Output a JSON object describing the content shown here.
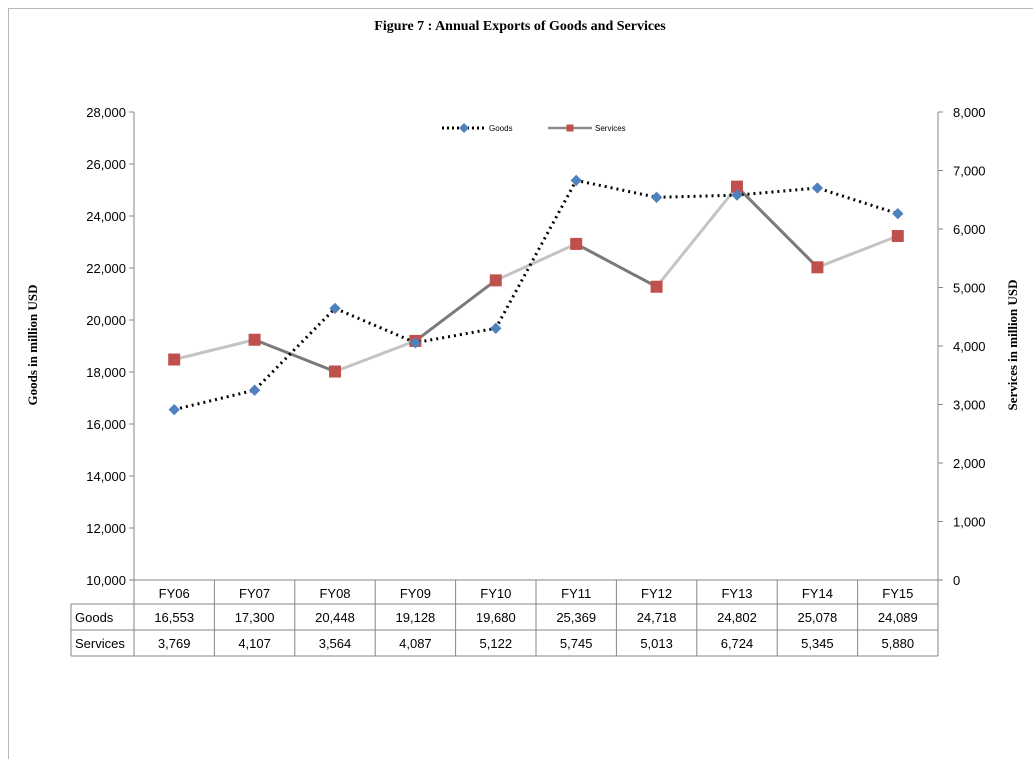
{
  "chart_data": {
    "type": "line",
    "title": "Figure  7 : Annual Exports of Goods and Services",
    "categories": [
      "FY06",
      "FY07",
      "FY08",
      "FY09",
      "FY10",
      "FY11",
      "FY12",
      "FY13",
      "FY14",
      "FY15"
    ],
    "series": [
      {
        "name": "Goods",
        "axis": "left",
        "values": [
          16553,
          17300,
          20448,
          19128,
          19680,
          25369,
          24718,
          24802,
          25078,
          24089
        ],
        "color": "#4f81bd",
        "line_color": "#000000",
        "line_style": "dotted",
        "marker": "diamond"
      },
      {
        "name": "Services",
        "axis": "right",
        "values": [
          3769,
          4107,
          3564,
          4087,
          5122,
          5745,
          5013,
          6724,
          5345,
          5880
        ],
        "color": "#c0504d",
        "line_color": "#8c8c8c",
        "line_style": "solid",
        "marker": "square"
      }
    ],
    "ylabel_left": "Goods in million USD",
    "ylabel_right": "Services in million USD",
    "ylim_left": [
      10000,
      28000
    ],
    "ylim_right": [
      0,
      8000
    ],
    "yticks_left": [
      "10,000",
      "12,000",
      "14,000",
      "16,000",
      "18,000",
      "20,000",
      "22,000",
      "24,000",
      "26,000",
      "28,000"
    ],
    "yticks_right": [
      "0",
      "1,000",
      "2,000",
      "3,000",
      "4,000",
      "5,000",
      "6,000",
      "7,000",
      "8,000"
    ],
    "grid": false,
    "legend_position": "top-center",
    "data_table": {
      "row_labels": [
        "Goods",
        "Services"
      ],
      "rows": [
        [
          "16,553",
          "17,300",
          "20,448",
          "19,128",
          "19,680",
          "25,369",
          "24,718",
          "24,802",
          "25,078",
          "24,089"
        ],
        [
          "3,769",
          "4,107",
          "3,564",
          "4,087",
          "5,122",
          "5,745",
          "5,013",
          "6,724",
          "5,345",
          "5,880"
        ]
      ]
    }
  }
}
